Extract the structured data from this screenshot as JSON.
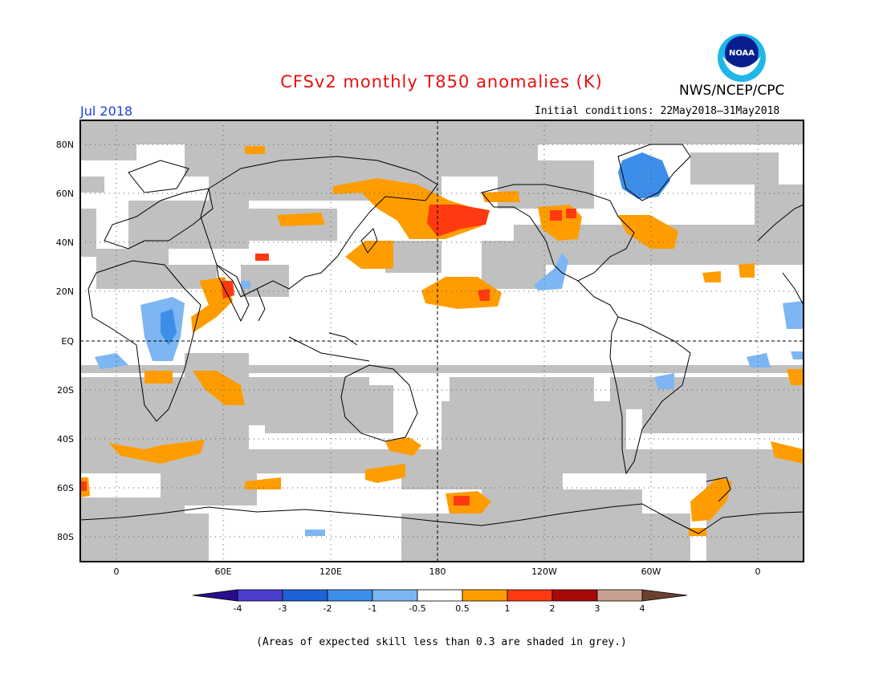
{
  "title": "CFSv2 monthly T850 anomalies (K)",
  "organization": "NWS/NCEP/CPC",
  "logo_text": "NOAA",
  "target_month": "Jul 2018",
  "initial_conditions": "Initial conditions: 22May2018–31May2018",
  "footnote": "(Areas of expected skill less than 0.3 are shaded in grey.)",
  "lat_labels": [
    "80N",
    "60N",
    "40N",
    "20N",
    "EQ",
    "20S",
    "40S",
    "60S",
    "80S"
  ],
  "lon_labels": [
    "0",
    "60E",
    "120E",
    "180",
    "120W",
    "60W",
    "0"
  ],
  "colorbar": {
    "labels": [
      "-4",
      "-3",
      "-2",
      "-1",
      "-0.5",
      "0.5",
      "1",
      "2",
      "3",
      "4"
    ],
    "colors": [
      "#2a0d8a",
      "#4b3cd0",
      "#1e63d6",
      "#3d8ee8",
      "#7db6f2",
      "#ffffff",
      "#ff9d00",
      "#ff3a10",
      "#a80a0a",
      "#c8a090",
      "#6b4030"
    ]
  },
  "colors": {
    "grey_skill": "#c0c0c0",
    "title_red": "#e81010",
    "month_blue": "#1a3fe0"
  }
}
